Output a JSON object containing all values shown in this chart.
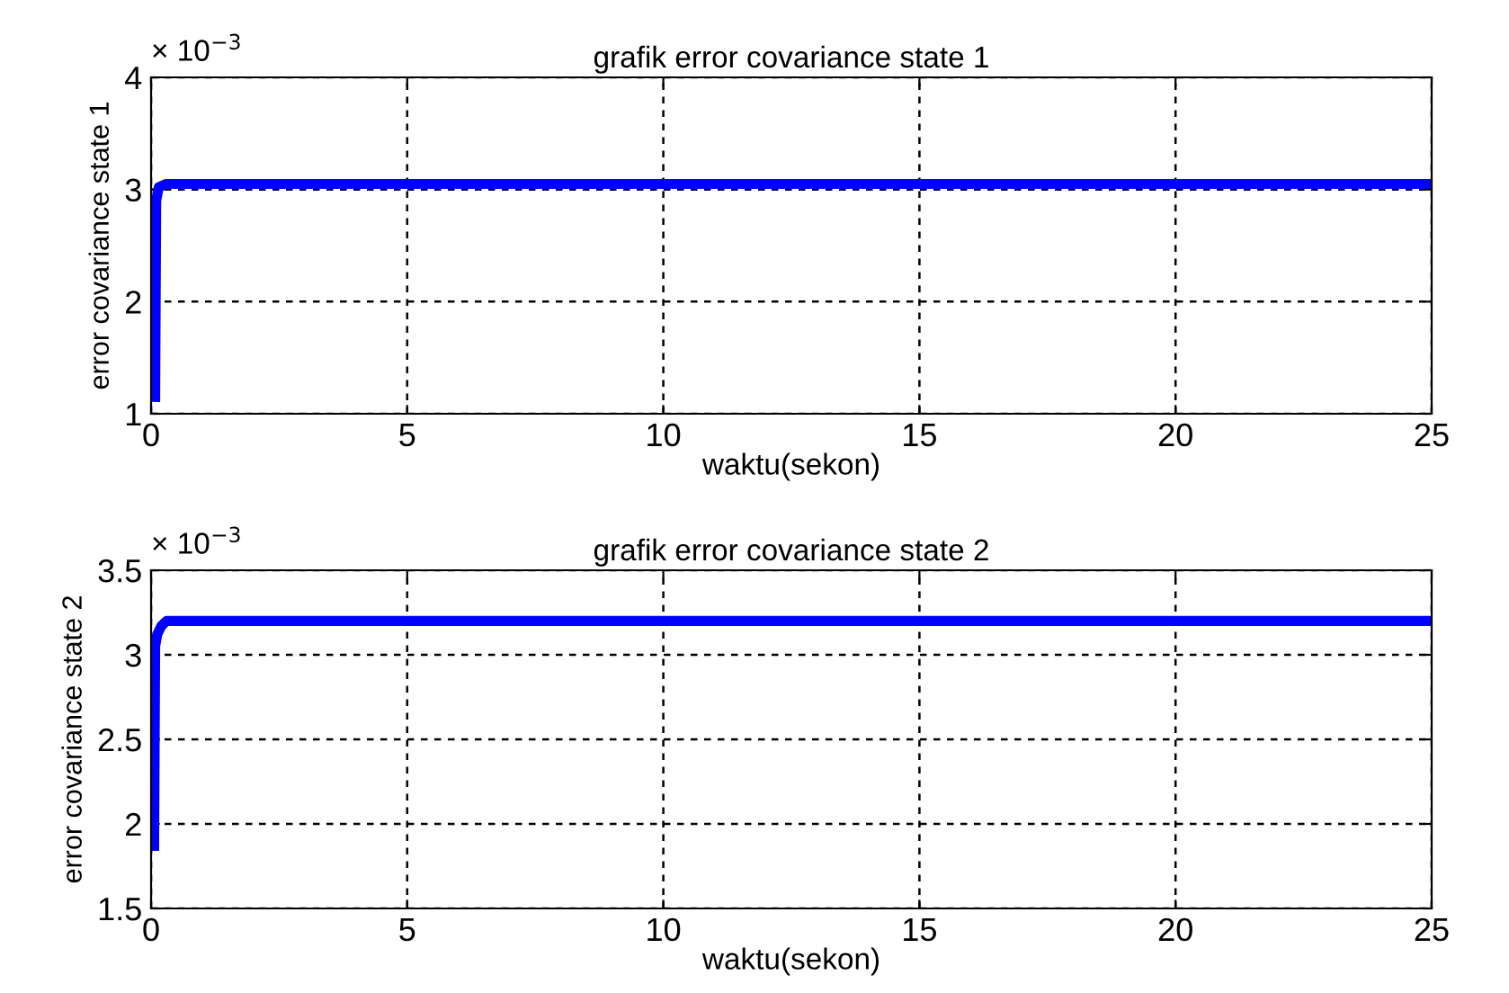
{
  "chart_data": [
    {
      "type": "line",
      "title": "grafik error covariance state 1",
      "xlabel": "waktu(sekon)",
      "ylabel": "error covariance state 1",
      "annotations": [
        "× 10$^{−3}$"
      ],
      "series": [
        {
          "color": "#0000ff",
          "x": [
            0.08,
            0.1,
            0.15,
            0.3,
            1,
            5,
            10,
            15,
            20,
            25
          ],
          "values": [
            1.15,
            2.9,
            3.02,
            3.05,
            3.05,
            3.05,
            3.05,
            3.05,
            3.05,
            3.05
          ]
        }
      ],
      "xlim": [
        0,
        25
      ],
      "xticks": [
        0,
        5,
        10,
        15,
        20,
        25
      ],
      "ylim": [
        1,
        4
      ],
      "yticks": [
        1,
        2,
        3,
        4
      ],
      "grid": true,
      "line_style": "solid"
    },
    {
      "type": "line",
      "title": "grafik error covariance state 2",
      "xlabel": "waktu(sekon)",
      "ylabel": "error covariance state 2",
      "annotations": [
        "× 10$^{−3}$"
      ],
      "series": [
        {
          "color": "#0000ff",
          "x": [
            0.06,
            0.08,
            0.12,
            0.2,
            0.3,
            1,
            5,
            10,
            15,
            20,
            25
          ],
          "values": [
            1.87,
            3.05,
            3.12,
            3.17,
            3.2,
            3.2,
            3.2,
            3.2,
            3.2,
            3.2,
            3.2
          ]
        }
      ],
      "xlim": [
        0,
        25
      ],
      "xticks": [
        0,
        5,
        10,
        15,
        20,
        25
      ],
      "ylim": [
        1.5,
        3.5
      ],
      "yticks": [
        1.5,
        2,
        2.5,
        3,
        3.5
      ],
      "grid": true,
      "line_style": "solid"
    }
  ]
}
